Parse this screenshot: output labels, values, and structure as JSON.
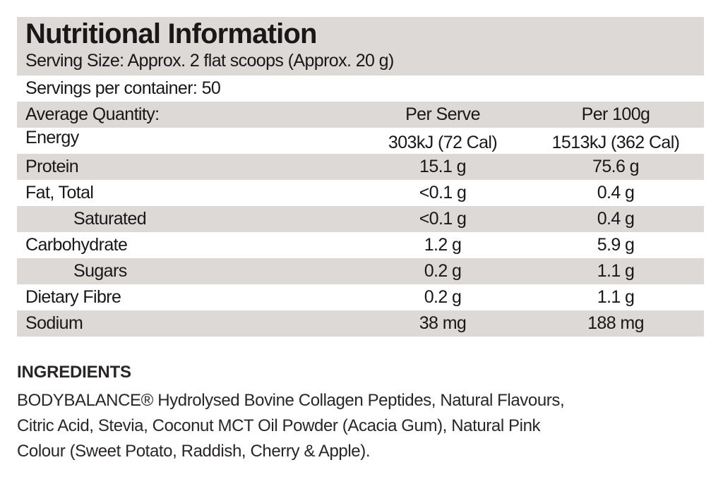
{
  "nutrition": {
    "title": "Nutritional Information",
    "serving_size": "Serving Size: Approx. 2 flat scoops (Approx. 20 g)",
    "servings_per_container": "Servings per container: 50",
    "header": {
      "label": "Average Quantity:",
      "per_serve": "Per Serve",
      "per_100g": "Per 100g"
    },
    "rows": [
      {
        "label": "Energy",
        "per_serve": "303kJ (72 Cal)",
        "per_100g": "1513kJ (362 Cal)"
      },
      {
        "label": "Protein",
        "per_serve": "15.1 g",
        "per_100g": "75.6 g"
      },
      {
        "label": "Fat, Total",
        "per_serve": "<0.1 g",
        "per_100g": "0.4 g"
      },
      {
        "label": "Saturated",
        "per_serve": "<0.1 g",
        "per_100g": "0.4 g"
      },
      {
        "label": "Carbohydrate",
        "per_serve": "1.2 g",
        "per_100g": "5.9 g"
      },
      {
        "label": "Sugars",
        "per_serve": "0.2 g",
        "per_100g": "1.1 g"
      },
      {
        "label": "Dietary Fibre",
        "per_serve": "0.2 g",
        "per_100g": "1.1 g"
      },
      {
        "label": "Sodium",
        "per_serve": "38 mg",
        "per_100g": "188 mg"
      }
    ]
  },
  "ingredients": {
    "heading": "INGREDIENTS",
    "lines": [
      "BODYBALANCE® Hydrolysed Bovine Collagen Peptides, Natural Flavours,",
      "Citric Acid, Stevia, Coconut MCT Oil Powder (Acacia Gum), Natural Pink",
      "Colour (Sweet Potato, Raddish, Cherry & Apple)."
    ]
  },
  "colors": {
    "stripe": "#dcd9d7",
    "text": "#1a1718"
  }
}
